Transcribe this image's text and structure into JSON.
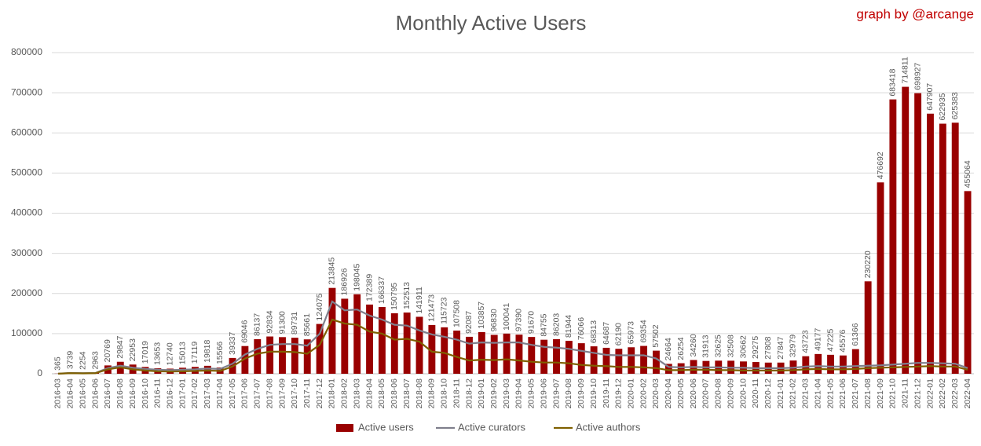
{
  "chart_data": {
    "type": "bar",
    "title": "Monthly Active Users",
    "credit": "graph by @arcange",
    "categories": [
      "2016-03",
      "2016-04",
      "2016-05",
      "2016-06",
      "2016-07",
      "2016-08",
      "2016-09",
      "2016-10",
      "2016-11",
      "2016-12",
      "2017-01",
      "2017-02",
      "2017-03",
      "2017-04",
      "2017-05",
      "2017-06",
      "2017-07",
      "2017-08",
      "2017-09",
      "2017-10",
      "2017-11",
      "2017-12",
      "2018-01",
      "2018-02",
      "2018-03",
      "2018-04",
      "2018-05",
      "2018-06",
      "2018-07",
      "2018-08",
      "2018-09",
      "2018-10",
      "2018-11",
      "2018-12",
      "2019-01",
      "2019-02",
      "2019-03",
      "2019-04",
      "2019-05",
      "2019-06",
      "2019-07",
      "2019-08",
      "2019-09",
      "2019-10",
      "2019-11",
      "2019-12",
      "2020-01",
      "2020-02",
      "2020-03",
      "2020-04",
      "2020-05",
      "2020-06",
      "2020-07",
      "2020-08",
      "2020-09",
      "2020-10",
      "2020-11",
      "2020-12",
      "2021-01",
      "2021-02",
      "2021-03",
      "2021-04",
      "2021-05",
      "2021-06",
      "2021-07",
      "2021-08",
      "2021-09",
      "2021-10",
      "2021-11",
      "2021-12",
      "2022-01",
      "2022-02",
      "2022-03",
      "2022-04"
    ],
    "series": [
      {
        "name": "Active users",
        "type": "bar",
        "color": "#990000",
        "values": [
          365,
          3739,
          2254,
          2963,
          20769,
          29847,
          22953,
          17019,
          13653,
          12740,
          15013,
          17119,
          19818,
          15566,
          39337,
          69046,
          86137,
          92834,
          91300,
          89731,
          85661,
          124075,
          213845,
          186926,
          198045,
          172389,
          166337,
          150795,
          152513,
          141911,
          121473,
          115723,
          107508,
          92087,
          103857,
          96830,
          100041,
          97390,
          91670,
          84755,
          86203,
          81944,
          76066,
          68313,
          64687,
          62190,
          65973,
          69354,
          57502,
          24664,
          26254,
          34260,
          31913,
          32625,
          32508,
          30662,
          29275,
          27808,
          27847,
          32979,
          43723,
          49177,
          47225,
          45576,
          61366,
          230220,
          476692,
          683418,
          714811,
          698927,
          647907,
          622935,
          625383,
          455064
        ]
      },
      {
        "name": "Active curators",
        "type": "line",
        "color": "#7f7f8c",
        "values": [
          300,
          2000,
          1500,
          2000,
          14000,
          20000,
          15000,
          12000,
          10000,
          9000,
          10000,
          11000,
          13000,
          12000,
          25000,
          48000,
          62000,
          72000,
          74000,
          74000,
          70000,
          100000,
          180000,
          158000,
          160000,
          145000,
          135000,
          122000,
          120000,
          108000,
          98000,
          92000,
          85000,
          75000,
          78000,
          77000,
          78000,
          78000,
          72000,
          67000,
          65000,
          62000,
          57000,
          52000,
          47000,
          46000,
          46000,
          46000,
          38000,
          17000,
          16000,
          17000,
          16000,
          16000,
          15000,
          15000,
          14000,
          14000,
          14000,
          15000,
          18000,
          19000,
          18000,
          18000,
          19000,
          20000,
          21000,
          23000,
          25000,
          27000,
          27000,
          26000,
          25000,
          14000
        ]
      },
      {
        "name": "Active authors",
        "type": "line",
        "color": "#7f6000",
        "values": [
          200,
          1500,
          1000,
          1500,
          11000,
          16000,
          11000,
          8000,
          6000,
          5500,
          6000,
          7000,
          8000,
          7000,
          18000,
          38000,
          50000,
          55000,
          55000,
          54000,
          50000,
          72000,
          135000,
          125000,
          122000,
          105000,
          100000,
          85000,
          87000,
          80000,
          55000,
          52000,
          42000,
          33000,
          35000,
          34000,
          36000,
          33000,
          30000,
          28000,
          28000,
          26000,
          22000,
          20000,
          19000,
          17000,
          17000,
          16000,
          14000,
          9000,
          9000,
          10000,
          10000,
          9000,
          9000,
          8000,
          8000,
          8000,
          8000,
          9000,
          11000,
          12000,
          11000,
          11000,
          12000,
          14000,
          15000,
          16000,
          17000,
          18000,
          19000,
          18000,
          18000,
          10000
        ]
      }
    ],
    "ylim": [
      0,
      800000
    ],
    "yticks": [
      0,
      100000,
      200000,
      300000,
      400000,
      500000,
      600000,
      700000,
      800000
    ],
    "grid": true,
    "legend": "bottom"
  }
}
